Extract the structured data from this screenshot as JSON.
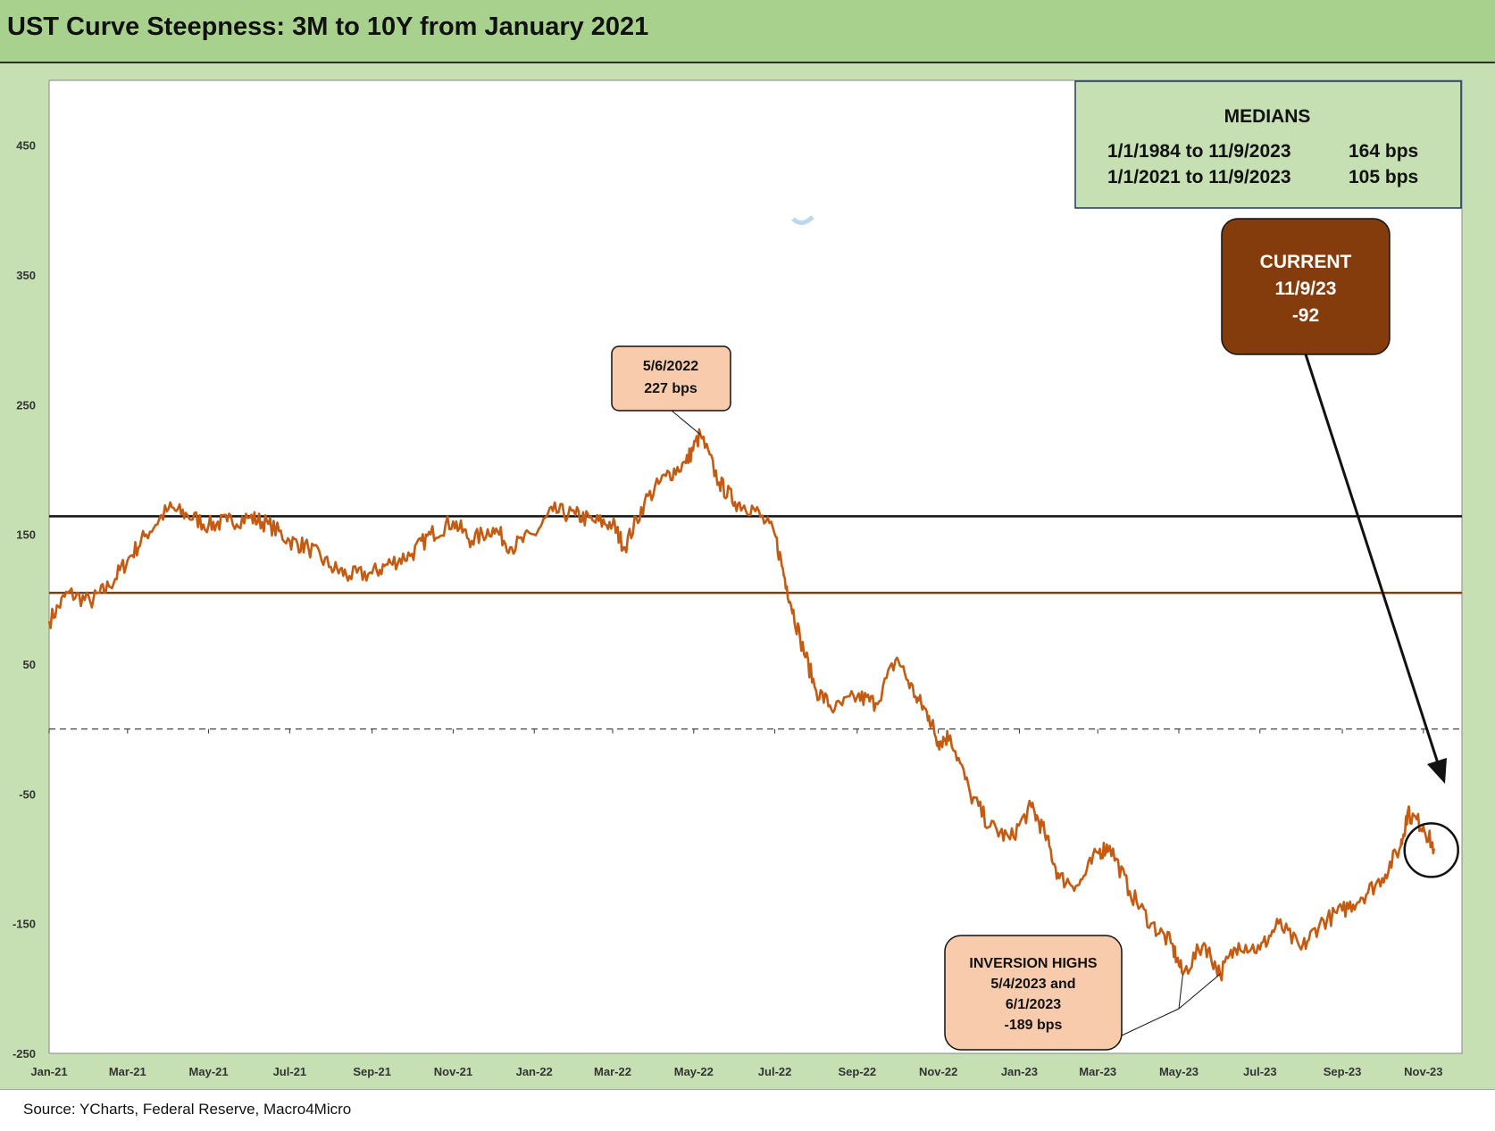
{
  "title": "UST Curve Steepness: 3M to 10Y from January 2021",
  "source": "Source: YCharts, Federal Reserve, Macro4Micro",
  "chart_data": {
    "type": "line",
    "title": "UST Curve Steepness: 3M to 10Y from January 2021",
    "xlabel": "",
    "ylabel": "",
    "ylim": [
      -250,
      500
    ],
    "xlim": [
      "2021-01-01",
      "2023-11-30"
    ],
    "y_ticks": [
      450,
      350,
      250,
      150,
      50,
      -50,
      -150,
      -250
    ],
    "x_ticks": [
      {
        "label": "Jan-21",
        "date": "2021-01-01"
      },
      {
        "label": "Mar-21",
        "date": "2021-03-01"
      },
      {
        "label": "May-21",
        "date": "2021-05-01"
      },
      {
        "label": "Jul-21",
        "date": "2021-07-01"
      },
      {
        "label": "Sep-21",
        "date": "2021-09-01"
      },
      {
        "label": "Nov-21",
        "date": "2021-11-01"
      },
      {
        "label": "Jan-22",
        "date": "2022-01-01"
      },
      {
        "label": "Mar-22",
        "date": "2022-03-01"
      },
      {
        "label": "May-22",
        "date": "2022-05-01"
      },
      {
        "label": "Jul-22",
        "date": "2022-07-01"
      },
      {
        "label": "Sep-22",
        "date": "2022-09-01"
      },
      {
        "label": "Nov-22",
        "date": "2022-11-01"
      },
      {
        "label": "Jan-23",
        "date": "2023-01-01"
      },
      {
        "label": "Mar-23",
        "date": "2023-03-01"
      },
      {
        "label": "May-23",
        "date": "2023-05-01"
      },
      {
        "label": "Jul-23",
        "date": "2023-07-01"
      },
      {
        "label": "Sep-23",
        "date": "2023-09-01"
      },
      {
        "label": "Nov-23",
        "date": "2023-11-01"
      }
    ],
    "grid": false,
    "series": [
      {
        "name": "",
        "color": "#c55a11",
        "points": [
          [
            "2021-01-01",
            83
          ],
          [
            "2021-01-15",
            105
          ],
          [
            "2021-02-01",
            98
          ],
          [
            "2021-02-15",
            110
          ],
          [
            "2021-03-01",
            130
          ],
          [
            "2021-03-15",
            150
          ],
          [
            "2021-04-01",
            170
          ],
          [
            "2021-04-15",
            165
          ],
          [
            "2021-05-01",
            157
          ],
          [
            "2021-05-15",
            160
          ],
          [
            "2021-06-01",
            163
          ],
          [
            "2021-06-15",
            158
          ],
          [
            "2021-07-01",
            145
          ],
          [
            "2021-07-15",
            140
          ],
          [
            "2021-08-01",
            125
          ],
          [
            "2021-08-15",
            118
          ],
          [
            "2021-09-01",
            120
          ],
          [
            "2021-09-15",
            128
          ],
          [
            "2021-10-01",
            135
          ],
          [
            "2021-10-15",
            150
          ],
          [
            "2021-11-01",
            160
          ],
          [
            "2021-11-15",
            145
          ],
          [
            "2021-12-01",
            155
          ],
          [
            "2021-12-15",
            140
          ],
          [
            "2022-01-01",
            150
          ],
          [
            "2022-01-15",
            168
          ],
          [
            "2022-02-01",
            165
          ],
          [
            "2022-02-15",
            160
          ],
          [
            "2022-03-01",
            158
          ],
          [
            "2022-03-10",
            140
          ],
          [
            "2022-03-25",
            175
          ],
          [
            "2022-04-10",
            195
          ],
          [
            "2022-04-25",
            205
          ],
          [
            "2022-05-06",
            227
          ],
          [
            "2022-05-20",
            190
          ],
          [
            "2022-06-01",
            175
          ],
          [
            "2022-06-15",
            170
          ],
          [
            "2022-07-01",
            150
          ],
          [
            "2022-07-10",
            110
          ],
          [
            "2022-07-20",
            70
          ],
          [
            "2022-08-01",
            30
          ],
          [
            "2022-08-15",
            15
          ],
          [
            "2022-09-01",
            25
          ],
          [
            "2022-09-15",
            20
          ],
          [
            "2022-10-01",
            55
          ],
          [
            "2022-10-15",
            25
          ],
          [
            "2022-10-25",
            10
          ],
          [
            "2022-11-01",
            -10
          ],
          [
            "2022-11-10",
            -5
          ],
          [
            "2022-11-25",
            -50
          ],
          [
            "2022-12-10",
            -75
          ],
          [
            "2022-12-25",
            -85
          ],
          [
            "2023-01-10",
            -60
          ],
          [
            "2023-01-20",
            -80
          ],
          [
            "2023-01-31",
            -115
          ],
          [
            "2023-02-15",
            -120
          ],
          [
            "2023-03-01",
            -95
          ],
          [
            "2023-03-10",
            -90
          ],
          [
            "2023-03-25",
            -125
          ],
          [
            "2023-04-10",
            -150
          ],
          [
            "2023-04-25",
            -165
          ],
          [
            "2023-05-04",
            -189
          ],
          [
            "2023-05-20",
            -165
          ],
          [
            "2023-06-01",
            -189
          ],
          [
            "2023-06-15",
            -165
          ],
          [
            "2023-07-01",
            -170
          ],
          [
            "2023-07-15",
            -150
          ],
          [
            "2023-08-01",
            -170
          ],
          [
            "2023-08-15",
            -150
          ],
          [
            "2023-09-01",
            -140
          ],
          [
            "2023-09-15",
            -130
          ],
          [
            "2023-10-01",
            -115
          ],
          [
            "2023-10-15",
            -90
          ],
          [
            "2023-10-20",
            -65
          ],
          [
            "2023-11-01",
            -75
          ],
          [
            "2023-11-09",
            -92
          ]
        ]
      }
    ],
    "reference_lines": [
      {
        "y": 164,
        "color": "#111111",
        "style": "solid"
      },
      {
        "y": 105,
        "color": "#843c0c",
        "style": "solid"
      },
      {
        "y": 0,
        "color": "#333333",
        "style": "dashed"
      }
    ],
    "annotations": {
      "medians": {
        "heading": "MEDIANS",
        "rows": [
          {
            "range": "1/1/1984 to 11/9/2023",
            "value": "164 bps"
          },
          {
            "range": "1/1/2021 to 11/9/2023",
            "value": "105 bps"
          }
        ]
      },
      "current": {
        "line1": "CURRENT",
        "line2": "11/9/23",
        "line3": "-92",
        "color": "#843c0c"
      },
      "peak": {
        "line1": "5/6/2022",
        "line2": "227 bps",
        "date": "2022-05-06",
        "value": 227
      },
      "inversion": {
        "line1": "INVERSION HIGHS",
        "line2": "5/4/2023 and",
        "line3": "6/1/2023",
        "line4": "-189 bps",
        "dates": [
          "2023-05-04",
          "2023-06-01"
        ],
        "value": -189
      }
    }
  }
}
